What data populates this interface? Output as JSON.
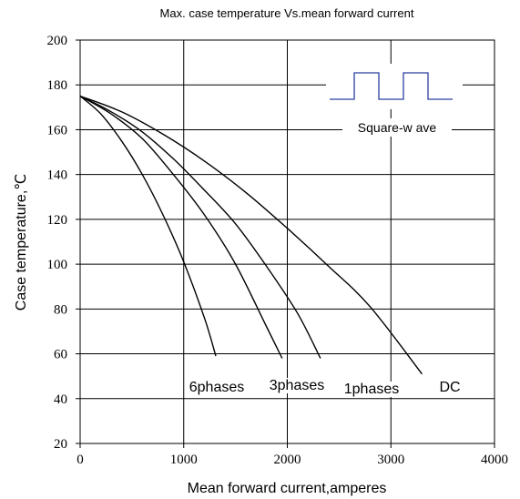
{
  "chart_data": {
    "type": "line",
    "title": "Max. case temperature Vs.mean forward current",
    "xlabel": "Mean forward current,amperes",
    "ylabel": "Case temperature,℃",
    "xlim": [
      0,
      4000
    ],
    "ylim": [
      20,
      200
    ],
    "xticks": [
      0,
      1000,
      2000,
      3000,
      4000
    ],
    "yticks": [
      20,
      40,
      60,
      80,
      100,
      120,
      140,
      160,
      180,
      200
    ],
    "grid": true,
    "series": [
      {
        "name": "6phases",
        "label": "6phases",
        "x": [
          0,
          200,
          400,
          600,
          800,
          1000,
          1200,
          1310
        ],
        "y": [
          175,
          167,
          155,
          140,
          122,
          101,
          76,
          59
        ]
      },
      {
        "name": "3phases",
        "label": "3phases",
        "x": [
          0,
          300,
          600,
          900,
          1200,
          1500,
          1800,
          1950
        ],
        "y": [
          175,
          167,
          156,
          140,
          122,
          100,
          72,
          58
        ]
      },
      {
        "name": "1phases",
        "label": "1phases",
        "x": [
          0,
          300,
          600,
          900,
          1200,
          1500,
          1800,
          2100,
          2320
        ],
        "y": [
          175,
          168,
          159,
          147,
          133,
          118,
          99,
          78,
          58
        ]
      },
      {
        "name": "DC",
        "label": "DC",
        "x": [
          0,
          400,
          800,
          1200,
          1600,
          2000,
          2400,
          2800,
          3300
        ],
        "y": [
          175,
          168,
          158,
          146,
          132,
          116,
          99,
          81,
          51
        ]
      }
    ],
    "inset": {
      "label": "Square-w ave",
      "waveform": [
        [
          0,
          0
        ],
        [
          1,
          0
        ],
        [
          1,
          1
        ],
        [
          2,
          1
        ],
        [
          2,
          0
        ],
        [
          3,
          0
        ],
        [
          3,
          1
        ],
        [
          4,
          1
        ],
        [
          4,
          0
        ],
        [
          5,
          0
        ]
      ]
    },
    "colors": {
      "curve": "#000000",
      "grid": "#000000",
      "inset_wave": "#2b3f9e"
    }
  }
}
